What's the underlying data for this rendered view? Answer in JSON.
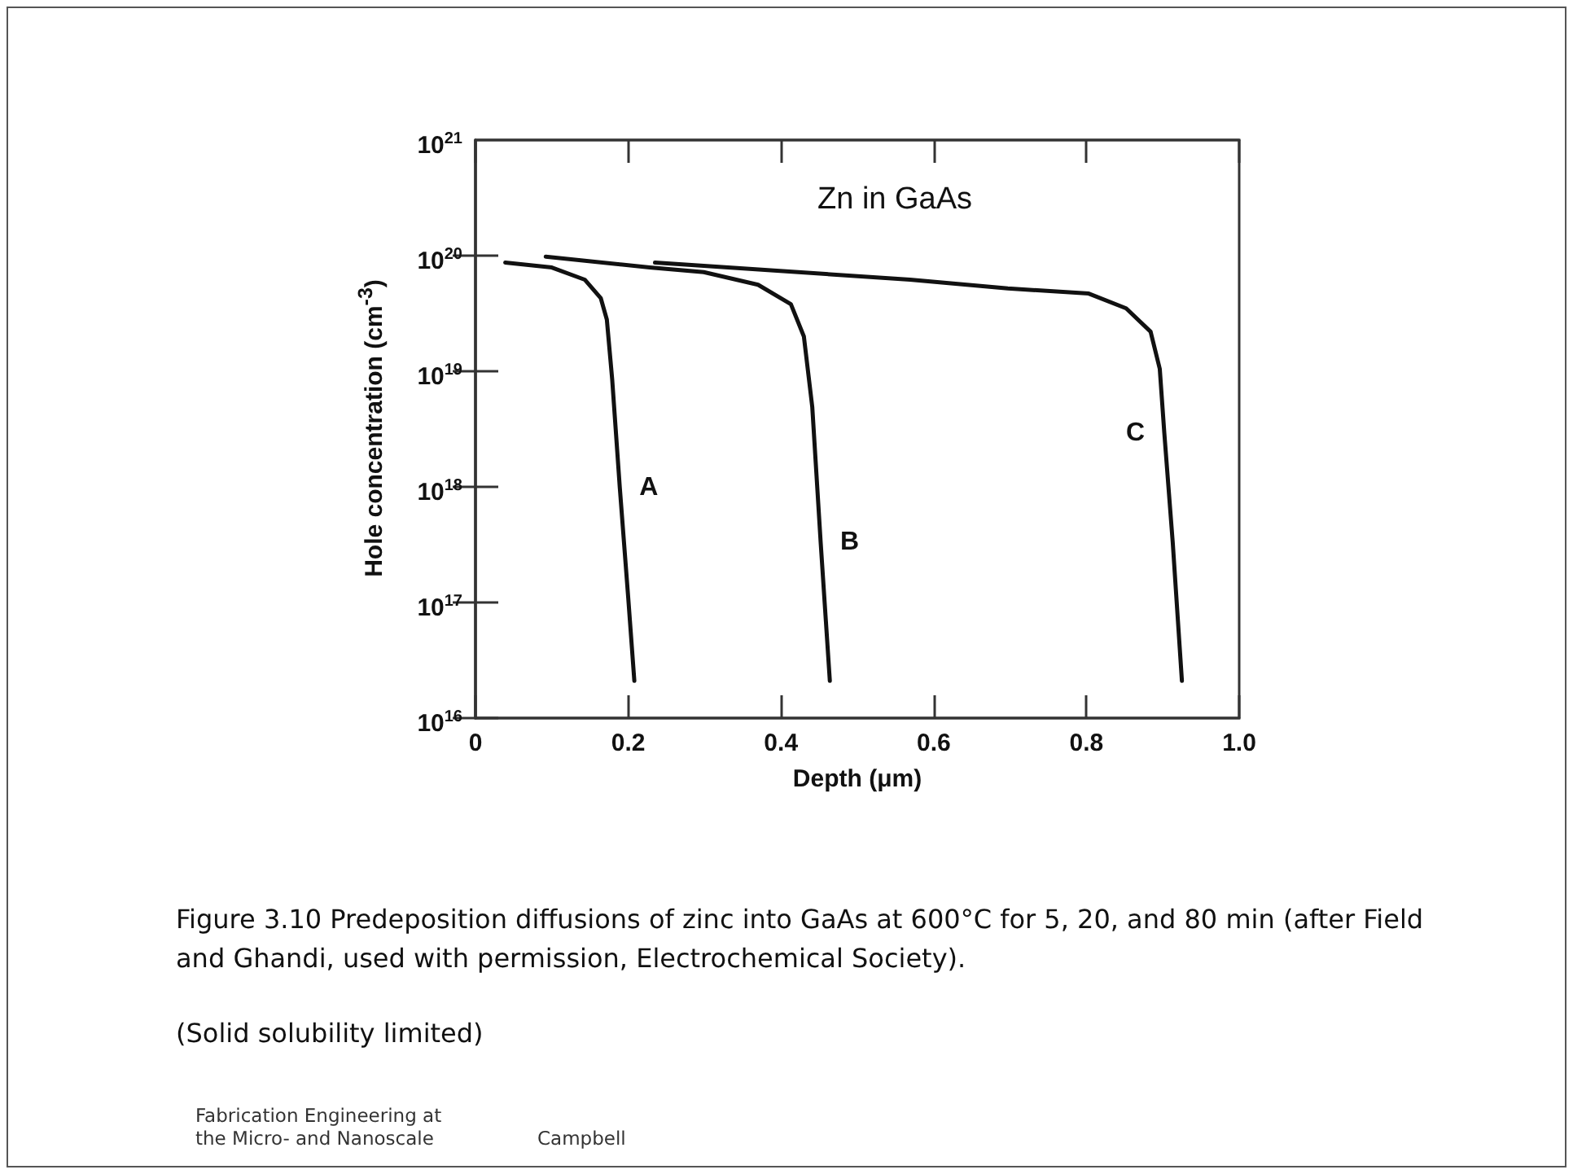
{
  "chart_data": {
    "type": "line",
    "title": "Zn in GaAs",
    "xlabel": "Depth (μm)",
    "ylabel": "Hole concentration (cm$^{-3}$)",
    "series": [
      {
        "name": "A",
        "color": "#111111",
        "x": [
          0.039,
          0.1,
          0.143,
          0.164,
          0.172,
          0.179,
          0.189,
          0.2,
          0.208
        ],
        "values": [
          8.7e+19,
          7.9e+19,
          6.2e+19,
          4.3e+19,
          2.8e+19,
          8.5e+18,
          9.8e+17,
          1.1e+17,
          2.1e+16
        ]
      },
      {
        "name": "B",
        "color": "#111111",
        "x": [
          0.092,
          0.228,
          0.299,
          0.37,
          0.413,
          0.43,
          0.441,
          0.452,
          0.464
        ],
        "values": [
          9.8e+19,
          7.9e+19,
          7.2e+19,
          5.6e+19,
          3.8e+19,
          2e+19,
          4.9e+18,
          3.3e+17,
          2.1e+16
        ]
      },
      {
        "name": "C",
        "color": "#111111",
        "x": [
          0.235,
          0.569,
          0.697,
          0.803,
          0.852,
          0.884,
          0.896,
          0.902,
          0.913,
          0.925
        ],
        "values": [
          8.7e+19,
          6.2e+19,
          5.2e+19,
          4.7e+19,
          3.5e+19,
          2.2e+19,
          1.05e+19,
          2.9e+18,
          3.3e+17,
          2.1e+16
        ]
      }
    ],
    "xlim": [
      0,
      1.0
    ],
    "xticks": [
      {
        "value": 0,
        "label": "0"
      },
      {
        "value": 0.2,
        "label": "0.2"
      },
      {
        "value": 0.4,
        "label": "0.4"
      },
      {
        "value": 0.6,
        "label": "0.6"
      },
      {
        "value": 0.8,
        "label": "0.8"
      },
      {
        "value": 1.0,
        "label": "1.0"
      }
    ],
    "ylim": [
      1e+16,
      1e+21
    ],
    "yticks": [
      {
        "value": 1e+16,
        "label": "10$^{16}$"
      },
      {
        "value": 1e+17,
        "label": "10$^{17}$"
      },
      {
        "value": 1e+18,
        "label": "10$^{18}$"
      },
      {
        "value": 1e+19,
        "label": "10$^{19}$"
      },
      {
        "value": 1e+20,
        "label": "10$^{20}$"
      },
      {
        "value": 1e+21,
        "label": "10$^{21}$"
      }
    ],
    "log": "y",
    "grid": false,
    "legend": false,
    "marker": "none",
    "line_style": "solid",
    "annotations": [
      "Figure 3.10 Predeposition diffusions of zinc into GaAs at 600°C for 5, 20, and 80 min (after Field and Ghandi, used with permission, Electrochemical Society).",
      "(Solid solubility limited)",
      "Fabrication Engineering at the Micro- and Nanoscale",
      "Campbell"
    ]
  }
}
